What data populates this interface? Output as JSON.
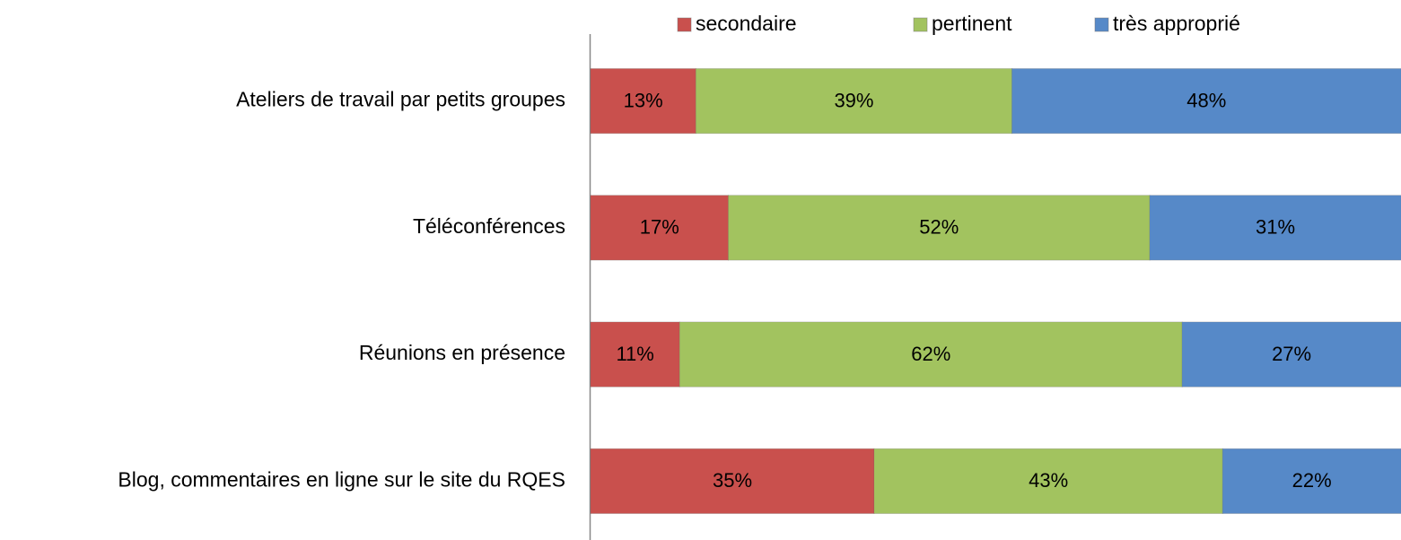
{
  "chart_data": {
    "type": "stacked_barh",
    "categories": [
      "Ateliers de travail par petits groupes",
      "Téléconférences",
      "Réunions en présence",
      "Blog, commentaires en ligne sur le site du RQES"
    ],
    "series": [
      {
        "name": "secondaire",
        "color": "#c9504d",
        "values": [
          13,
          17,
          11,
          35
        ],
        "value_labels": [
          "13%",
          "17%",
          "11%",
          "35%"
        ]
      },
      {
        "name": "pertinent",
        "color": "#a2c35f",
        "values": [
          39,
          52,
          62,
          43
        ],
        "value_labels": [
          "39%",
          "52%",
          "62%",
          "43%"
        ]
      },
      {
        "name": "très approprié",
        "color": "#5689c8",
        "values": [
          48,
          31,
          27,
          22
        ],
        "value_labels": [
          "48%",
          "31%",
          "27%",
          "22%"
        ]
      }
    ],
    "xlim": [
      0,
      100
    ],
    "legend": "top"
  }
}
